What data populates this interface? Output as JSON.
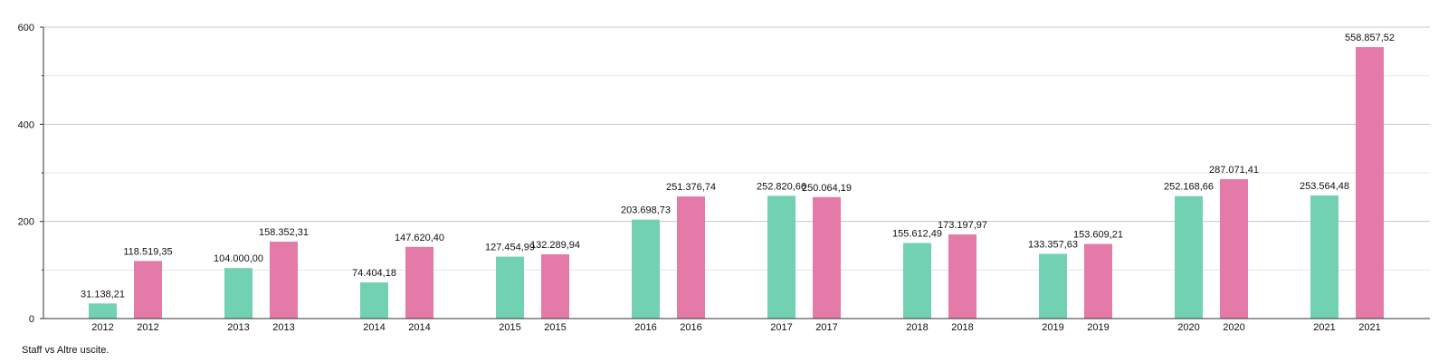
{
  "chart_data": {
    "type": "bar",
    "categories": [
      "2012",
      "2013",
      "2014",
      "2015",
      "2016",
      "2017",
      "2018",
      "2019",
      "2020",
      "2021"
    ],
    "series": [
      {
        "name": "Staff",
        "color": "#72d1b3",
        "values": [
          31.13821,
          104.0,
          74.40418,
          127.45499,
          203.69873,
          252.82066,
          155.61249,
          133.35763,
          252.16866,
          253.56448
        ],
        "x_labels": [
          "2012",
          "2013",
          "2014",
          "2015",
          "2016",
          "2017",
          "2018",
          "2019",
          "2020",
          "2021"
        ],
        "data_labels": [
          "31.138,21",
          "104.000,00",
          "74.404,18",
          "127.454,99",
          "203.698,73",
          "252.820,66",
          "155.612,49",
          "133.357,63",
          "252.168,66",
          "253.564,48"
        ]
      },
      {
        "name": "Altre uscite",
        "color": "#e47aa7",
        "values": [
          118.51935,
          158.35231,
          147.6204,
          132.28994,
          251.37674,
          250.06419,
          173.19797,
          153.60921,
          287.07141,
          558.85752
        ],
        "x_labels": [
          "2012",
          "2013",
          "2014",
          "2015",
          "2016",
          "2017",
          "2018",
          "2019",
          "2020",
          "2021"
        ],
        "data_labels": [
          "118.519,35",
          "158.352,31",
          "147.620,40",
          "132.289,94",
          "251.376,74",
          "250.064,19",
          "173.197,97",
          "153.609,21",
          "287.071,41",
          "558.857,52"
        ]
      }
    ],
    "y_ticks": [
      "0",
      "200",
      "400",
      "600"
    ],
    "ylim": [
      0,
      600
    ],
    "grid": true,
    "gridline_color": "#c8c8c8",
    "minor_gridline_color": "#e6e6e6",
    "title": "",
    "xlabel": "",
    "ylabel": "",
    "caption": "Staff vs Altre uscite."
  }
}
